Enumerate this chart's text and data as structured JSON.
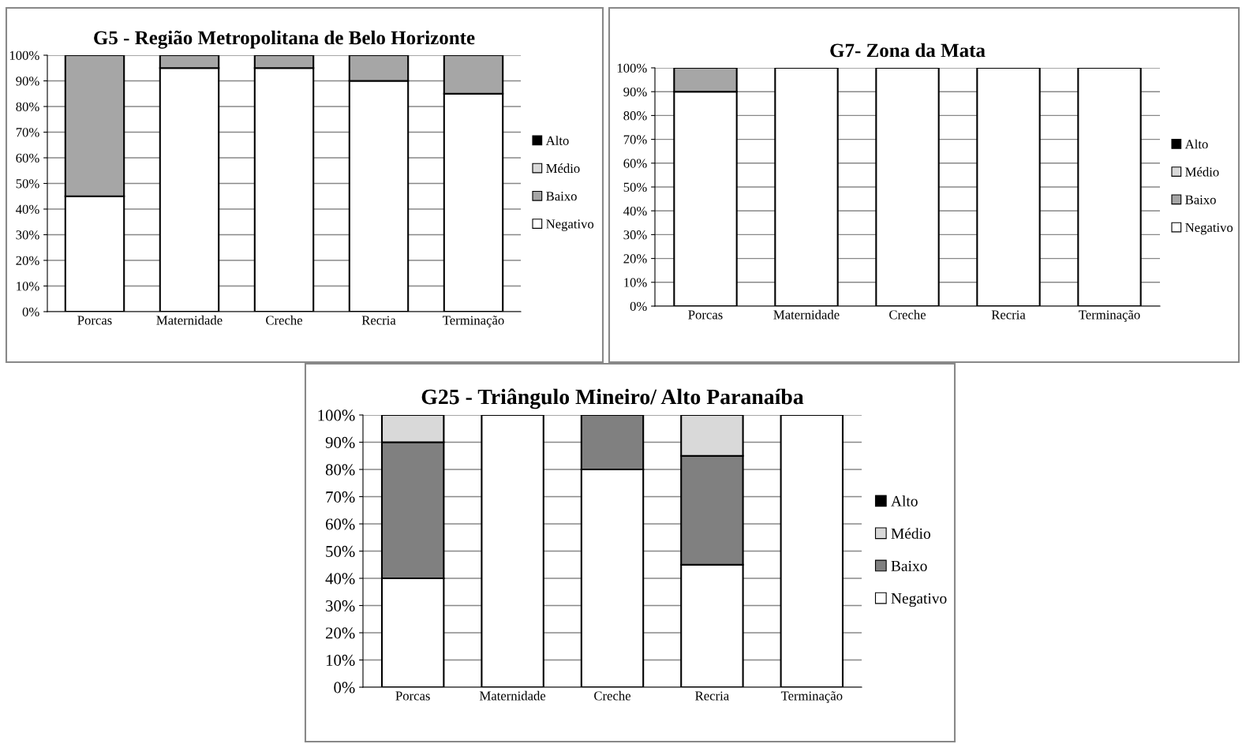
{
  "chart_data": [
    {
      "type": "bar",
      "title": "G5 - Região Metropolitana de Belo Horizonte",
      "stacked": true,
      "grid": "y",
      "legend": "right",
      "categories": [
        "Porcas",
        "Maternidade",
        "Creche",
        "Recria",
        "Terminação"
      ],
      "ylim": [
        0,
        100
      ],
      "yticks": [
        {
          "value": 0,
          "label": "0%"
        },
        {
          "value": 10,
          "label": "10%"
        },
        {
          "value": 20,
          "label": "20%"
        },
        {
          "value": 30,
          "label": "30%"
        },
        {
          "value": 40,
          "label": "40%"
        },
        {
          "value": 50,
          "label": "50%"
        },
        {
          "value": 60,
          "label": "60%"
        },
        {
          "value": 70,
          "label": "70%"
        },
        {
          "value": 80,
          "label": "80%"
        },
        {
          "value": 90,
          "label": "90%"
        },
        {
          "value": 100,
          "label": "100%"
        }
      ],
      "series": [
        {
          "name": "Negativo",
          "color": "#ffffff",
          "values": [
            45,
            95,
            95,
            90,
            85
          ]
        },
        {
          "name": "Baixo",
          "color": "#a6a6a6",
          "values": [
            55,
            5,
            5,
            10,
            15
          ]
        },
        {
          "name": "Médio",
          "color": "#d9d9d9",
          "values": [
            0,
            0,
            0,
            0,
            0
          ]
        },
        {
          "name": "Alto",
          "color": "#000000",
          "values": [
            0,
            0,
            0,
            0,
            0
          ]
        }
      ]
    },
    {
      "type": "bar",
      "title": "G7- Zona da Mata",
      "stacked": true,
      "grid": "y",
      "legend": "right",
      "categories": [
        "Porcas",
        "Maternidade",
        "Creche",
        "Recria",
        "Terminação"
      ],
      "ylim": [
        0,
        100
      ],
      "yticks": [
        {
          "value": 0,
          "label": "0%"
        },
        {
          "value": 10,
          "label": "10%"
        },
        {
          "value": 20,
          "label": "20%"
        },
        {
          "value": 30,
          "label": "30%"
        },
        {
          "value": 40,
          "label": "40%"
        },
        {
          "value": 50,
          "label": "50%"
        },
        {
          "value": 60,
          "label": "60%"
        },
        {
          "value": 70,
          "label": "70%"
        },
        {
          "value": 80,
          "label": "80%"
        },
        {
          "value": 90,
          "label": "90%"
        },
        {
          "value": 100,
          "label": "100%"
        }
      ],
      "series": [
        {
          "name": "Negativo",
          "color": "#ffffff",
          "values": [
            90,
            100,
            100,
            100,
            100
          ]
        },
        {
          "name": "Baixo",
          "color": "#a6a6a6",
          "values": [
            10,
            0,
            0,
            0,
            0
          ]
        },
        {
          "name": "Médio",
          "color": "#d9d9d9",
          "values": [
            0,
            0,
            0,
            0,
            0
          ]
        },
        {
          "name": "Alto",
          "color": "#000000",
          "values": [
            0,
            0,
            0,
            0,
            0
          ]
        }
      ]
    },
    {
      "type": "bar",
      "title": "G25 - Triângulo Mineiro/ Alto Paranaíba",
      "stacked": true,
      "grid": "y",
      "legend": "right",
      "categories": [
        "Porcas",
        "Maternidade",
        "Creche",
        "Recria",
        "Terminação"
      ],
      "ylim": [
        0,
        100
      ],
      "yticks": [
        {
          "value": 0,
          "label": "0%"
        },
        {
          "value": 10,
          "label": "10%"
        },
        {
          "value": 20,
          "label": "20%"
        },
        {
          "value": 30,
          "label": "30%"
        },
        {
          "value": 40,
          "label": "40%"
        },
        {
          "value": 50,
          "label": "50%"
        },
        {
          "value": 60,
          "label": "60%"
        },
        {
          "value": 70,
          "label": "70%"
        },
        {
          "value": 80,
          "label": "80%"
        },
        {
          "value": 90,
          "label": "90%"
        },
        {
          "value": 100,
          "label": "100%"
        }
      ],
      "series": [
        {
          "name": "Negativo",
          "color": "#ffffff",
          "values": [
            40,
            100,
            80,
            45,
            100
          ]
        },
        {
          "name": "Baixo",
          "color": "#808080",
          "values": [
            50,
            0,
            20,
            40,
            0
          ]
        },
        {
          "name": "Médio",
          "color": "#d9d9d9",
          "values": [
            10,
            0,
            0,
            15,
            0
          ]
        },
        {
          "name": "Alto",
          "color": "#000000",
          "values": [
            0,
            0,
            0,
            0,
            0
          ]
        }
      ]
    }
  ]
}
